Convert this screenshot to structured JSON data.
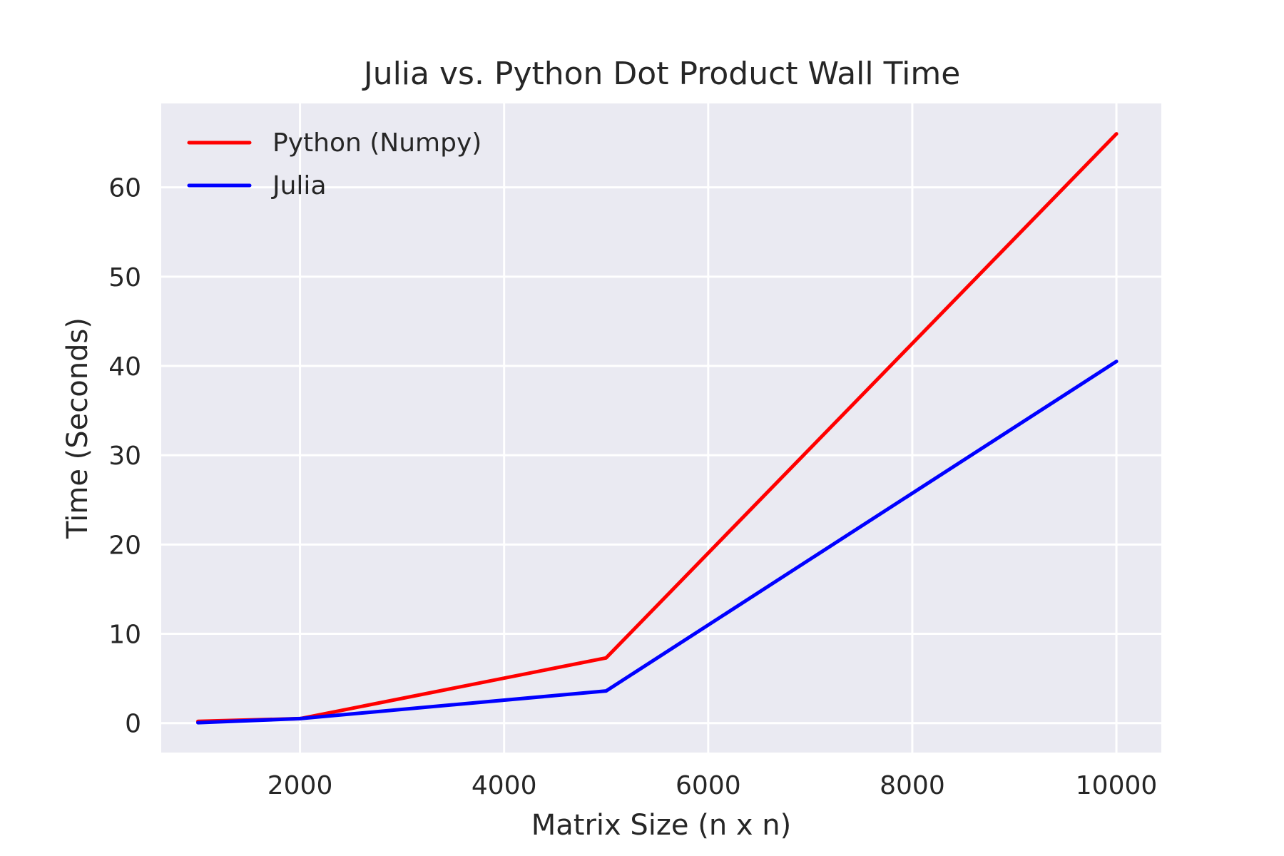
{
  "chart_data": {
    "type": "line",
    "title": "Julia vs. Python Dot Product Wall Time",
    "xlabel": "Matrix Size (n x n)",
    "ylabel": "Time (Seconds)",
    "xlim": [
      640,
      10440
    ],
    "ylim": [
      -3.3,
      69.4
    ],
    "xticks": [
      2000,
      4000,
      6000,
      8000,
      10000
    ],
    "yticks": [
      0,
      10,
      20,
      30,
      40,
      50,
      60
    ],
    "grid": true,
    "legend_position": "top-left",
    "background": "#eaeaf2",
    "series": [
      {
        "name": "Python (Numpy)",
        "color": "#ff0000",
        "x": [
          1000,
          2000,
          5000,
          10000
        ],
        "y": [
          0.2,
          0.5,
          7.3,
          66.0
        ]
      },
      {
        "name": "Julia",
        "color": "#0000ff",
        "x": [
          1000,
          2000,
          5000,
          10000
        ],
        "y": [
          0.05,
          0.5,
          3.6,
          40.5
        ]
      }
    ]
  }
}
